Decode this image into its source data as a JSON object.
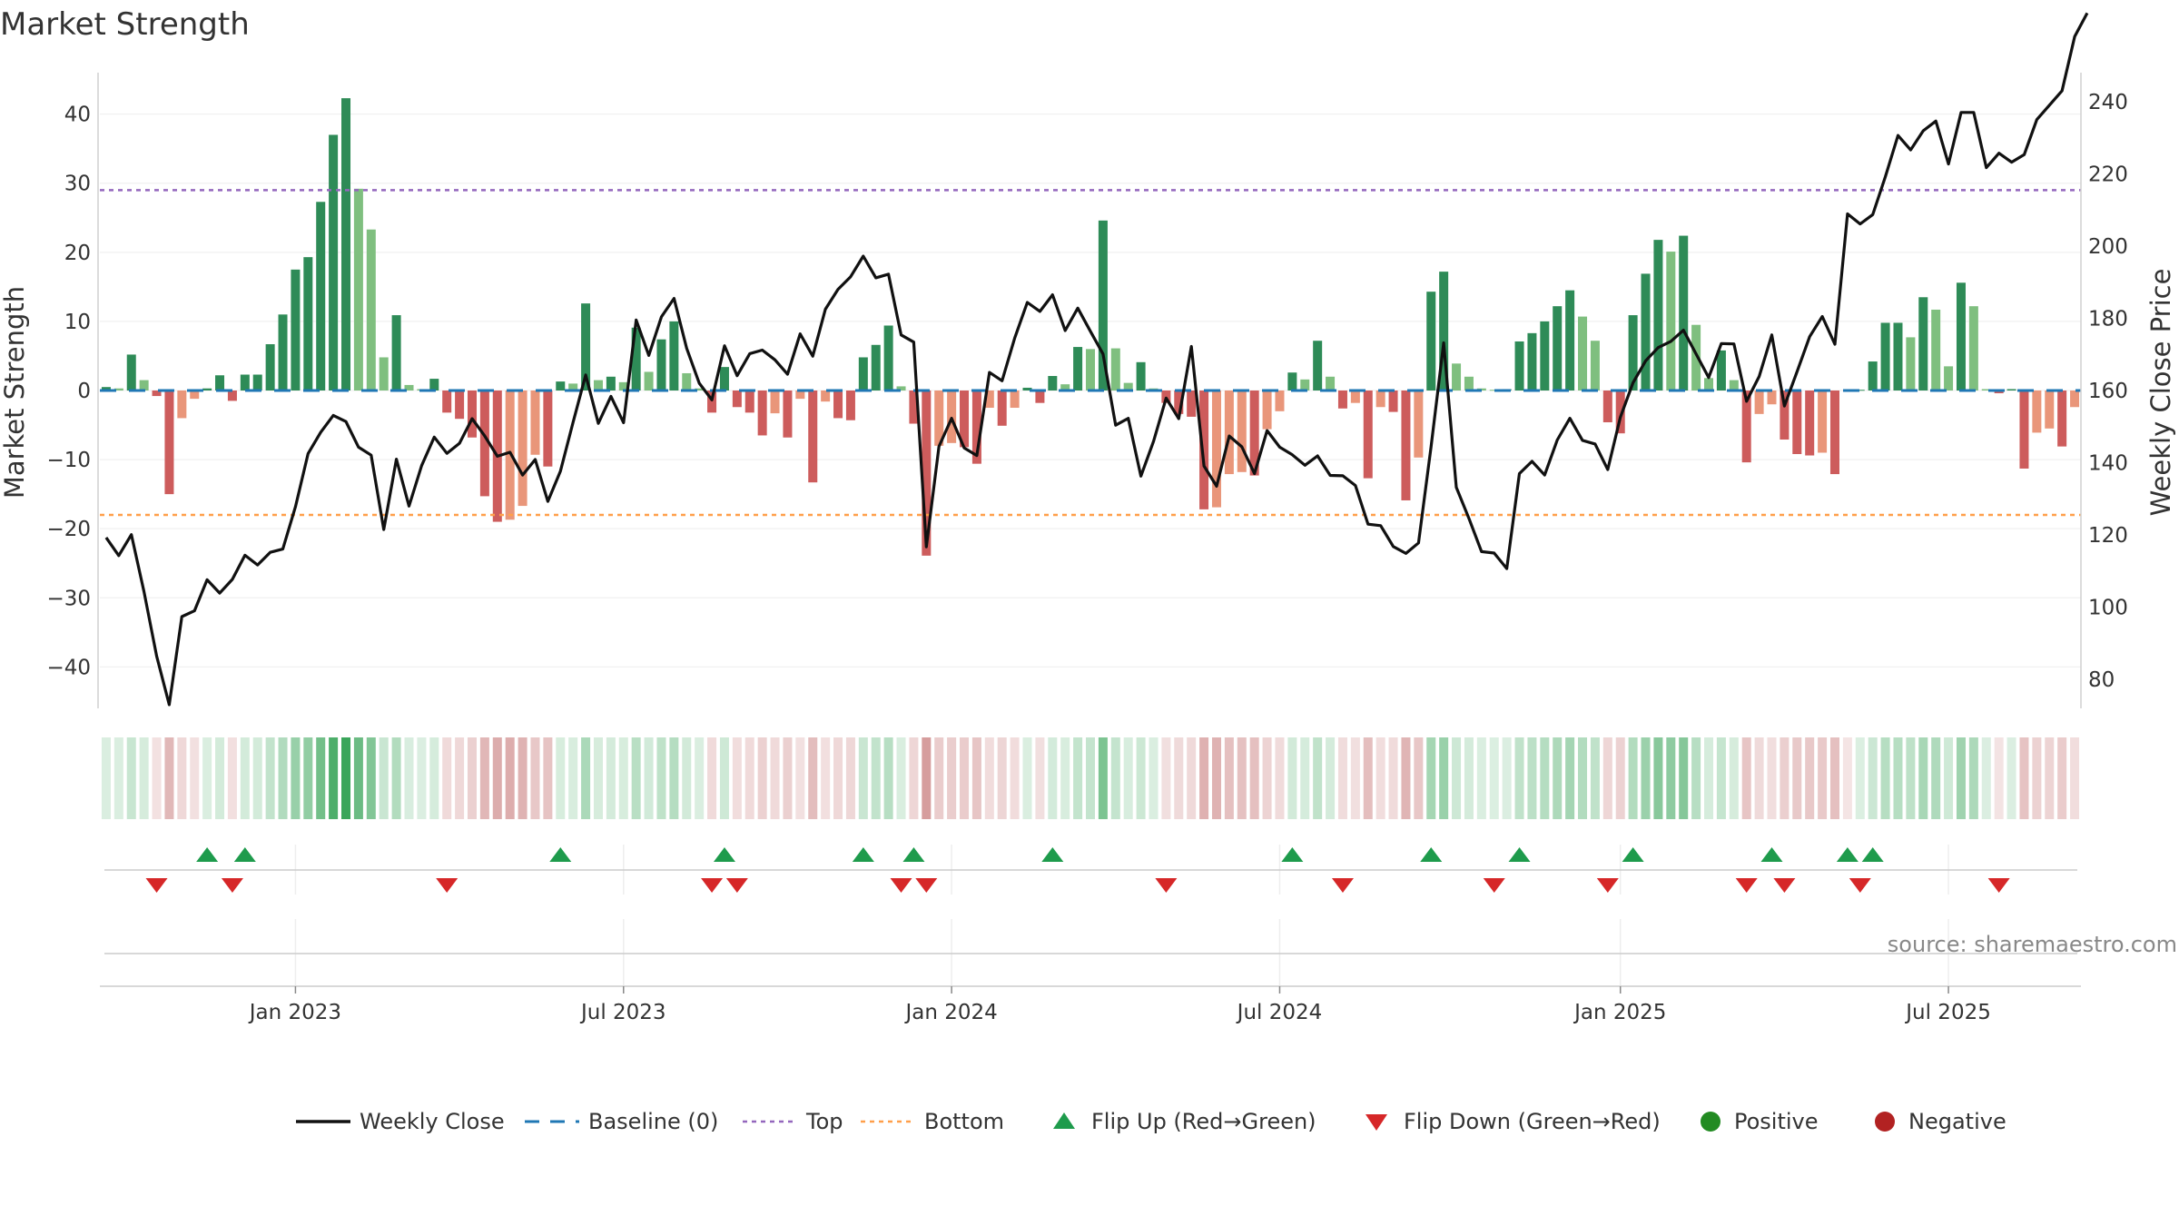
{
  "chart_data": {
    "type": "bar",
    "title": "Market Strength",
    "ylabel_left": "Market Strength",
    "ylabel_right": "Weekly Close Price",
    "source": "source: sharemaestro.com",
    "left_ticks": [
      "40",
      "30",
      "20",
      "10",
      "0",
      "−10",
      "−20",
      "−30",
      "−40"
    ],
    "right_ticks": [
      "240",
      "220",
      "200",
      "180",
      "160",
      "140",
      "120",
      "100",
      "80"
    ],
    "ylim_left": [
      -46,
      46
    ],
    "ylim_right": [
      72,
      248
    ],
    "x_ticks": [
      {
        "label": "Jan 2023",
        "week": 15
      },
      {
        "label": "Jul 2023",
        "week": 41
      },
      {
        "label": "Jan 2024",
        "week": 67
      },
      {
        "label": "Jul 2024",
        "week": 93
      },
      {
        "label": "Jan 2025",
        "week": 120
      },
      {
        "label": "Jul 2025",
        "week": 146
      }
    ],
    "top_line": 29,
    "bottom_line": -18,
    "grid": true,
    "legend_position": "bottom",
    "legend": [
      {
        "label": "Weekly Close",
        "kind": "line",
        "color": "#111111"
      },
      {
        "label": "Baseline (0)",
        "kind": "dash",
        "color": "#1f77b4"
      },
      {
        "label": "Top",
        "kind": "dot",
        "color": "#9467bd"
      },
      {
        "label": "Bottom",
        "kind": "dot",
        "color": "#ff9f4a"
      },
      {
        "label": "Flip Up (Red→Green)",
        "kind": "tri-up",
        "color": "#1e9b4c"
      },
      {
        "label": "Flip Down (Green→Red)",
        "kind": "tri-down",
        "color": "#d62728"
      },
      {
        "label": "Positive",
        "kind": "circle",
        "color": "#228b22"
      },
      {
        "label": "Negative",
        "kind": "circle",
        "color": "#b22222"
      }
    ],
    "colors": {
      "pos_strong": "#2e8b57",
      "pos_weak": "#7fbf7f",
      "neg_strong": "#cd5c5c",
      "neg_weak": "#e9967a",
      "price_line": "#111111",
      "top": "#9467bd",
      "bottom": "#ff9f4a",
      "baseline": "#1f77b4",
      "flip_up": "#1e9b4c",
      "flip_down": "#d62728"
    },
    "strength": [
      0.5,
      0.3,
      5.2,
      1.5,
      -0.8,
      -15,
      -4,
      -1.2,
      0.3,
      2.2,
      -1.5,
      2.3,
      2.3,
      6.7,
      11,
      17.5,
      19.3,
      27.3,
      37,
      42.3,
      29.2,
      23.3,
      4.8,
      10.9,
      0.8,
      0.2,
      1.7,
      -3.2,
      -4.1,
      -6.8,
      -15.3,
      -19,
      -18.7,
      -16.7,
      -9.3,
      -11,
      1.3,
      1.0,
      12.6,
      1.5,
      2.0,
      1.2,
      9.1,
      2.7,
      7.4,
      10.0,
      2.5,
      0.3,
      -3.2,
      3.4,
      -2.4,
      -3.2,
      -6.5,
      -3.3,
      -6.8,
      -1.2,
      -13.3,
      -1.6,
      -4.0,
      -4.3,
      4.8,
      6.6,
      9.4,
      0.6,
      -4.8,
      -23.9,
      -8.0,
      -7.6,
      -8.2,
      -10.6,
      -2.5,
      -5.1,
      -2.5,
      0.4,
      -1.8,
      2.1,
      0.9,
      6.3,
      6.0,
      24.6,
      6.1,
      1.1,
      4.1,
      0.3,
      -1.8,
      -3.4,
      -3.8,
      -17.2,
      -16.9,
      -12.1,
      -11.8,
      -12.3,
      -5.6,
      -3.0,
      2.6,
      1.6,
      7.2,
      2.0,
      -2.6,
      -1.8,
      -12.7,
      -2.4,
      -3.1,
      -15.9,
      -9.7,
      14.3,
      17.2,
      3.9,
      2.0,
      0.3,
      0.1,
      0.2,
      7.1,
      8.3,
      10.0,
      12.2,
      14.5,
      10.7,
      7.2,
      -4.6,
      -6.2,
      10.9,
      16.9,
      21.8,
      20.1,
      22.4,
      9.5,
      1.8,
      5.8,
      1.5,
      -10.4,
      -3.4,
      -2.0,
      -7.1,
      -9.2,
      -9.4,
      -9.0,
      -12.1,
      -0.1,
      0.1,
      4.2,
      9.8,
      9.8,
      7.7,
      13.5,
      11.7,
      3.5,
      15.6,
      12.2,
      0.2,
      -0.4,
      0.2,
      -11.3,
      -6.1,
      -5.5,
      -8.1,
      -2.4
    ],
    "price": [
      119.3,
      114.3,
      120.1,
      104.3,
      86.5,
      73.0,
      97.4,
      99.0,
      107.6,
      103.9,
      107.7,
      114.4,
      111.7,
      115.2,
      116.1,
      127.8,
      142.5,
      148.4,
      153.1,
      151.4,
      144.3,
      142.1,
      121.5,
      141.0,
      128.0,
      139.2,
      147.1,
      142.6,
      145.4,
      152.2,
      147.4,
      141.8,
      142.9,
      136.6,
      140.9,
      129.3,
      137.7,
      151.2,
      164.3,
      150.9,
      158.4,
      151.1,
      179.5,
      169.7,
      180.4,
      185.5,
      171.7,
      162.0,
      157.4,
      172.4,
      164.1,
      170.2,
      171.2,
      168.5,
      164.5,
      175.7,
      169.5,
      182.5,
      188.0,
      191.5,
      197.2,
      191.2,
      192.2,
      175.4,
      173.4,
      116.7,
      144.5,
      152.3,
      144.1,
      142.0,
      165.0,
      162.7,
      174.5,
      184.4,
      181.9,
      186.5,
      176.6,
      182.8,
      176.4,
      170.1,
      150.4,
      152.3,
      136.3,
      145.9,
      157.9,
      152.2,
      172.2,
      139.1,
      133.5,
      147.4,
      144.4,
      137.0,
      148.9,
      144.3,
      142.2,
      139.3,
      141.9,
      136.5,
      136.4,
      133.7,
      123.0,
      122.6,
      116.8,
      114.9,
      117.8,
      144.4,
      173.2,
      133.2,
      124.6,
      115.4,
      115.0,
      110.7,
      137.0,
      140.4,
      136.6,
      146.3,
      152.3,
      146.2,
      145.2,
      138.1,
      152.6,
      162.1,
      168.2,
      171.9,
      173.6,
      176.7,
      170.1,
      163.6,
      173.0,
      172.9,
      157.0,
      163.9,
      175.4,
      155.7,
      165.2,
      174.9,
      180.5,
      172.8,
      208.9,
      206.1,
      208.7,
      219.2,
      230.6,
      226.6,
      231.9,
      234.6,
      222.7,
      237.0,
      237.0,
      221.7,
      225.7,
      223.2,
      225.3,
      235.0,
      239.0,
      243.0,
      258.0,
      264.5
    ],
    "flip_up_weeks": [
      8,
      11,
      36,
      49,
      60,
      64,
      75,
      94,
      105,
      112,
      121,
      132,
      138,
      140
    ],
    "flip_down_weeks": [
      4,
      10,
      27,
      48,
      50,
      63,
      65,
      84,
      98,
      110,
      119,
      130,
      133,
      139,
      150
    ]
  }
}
